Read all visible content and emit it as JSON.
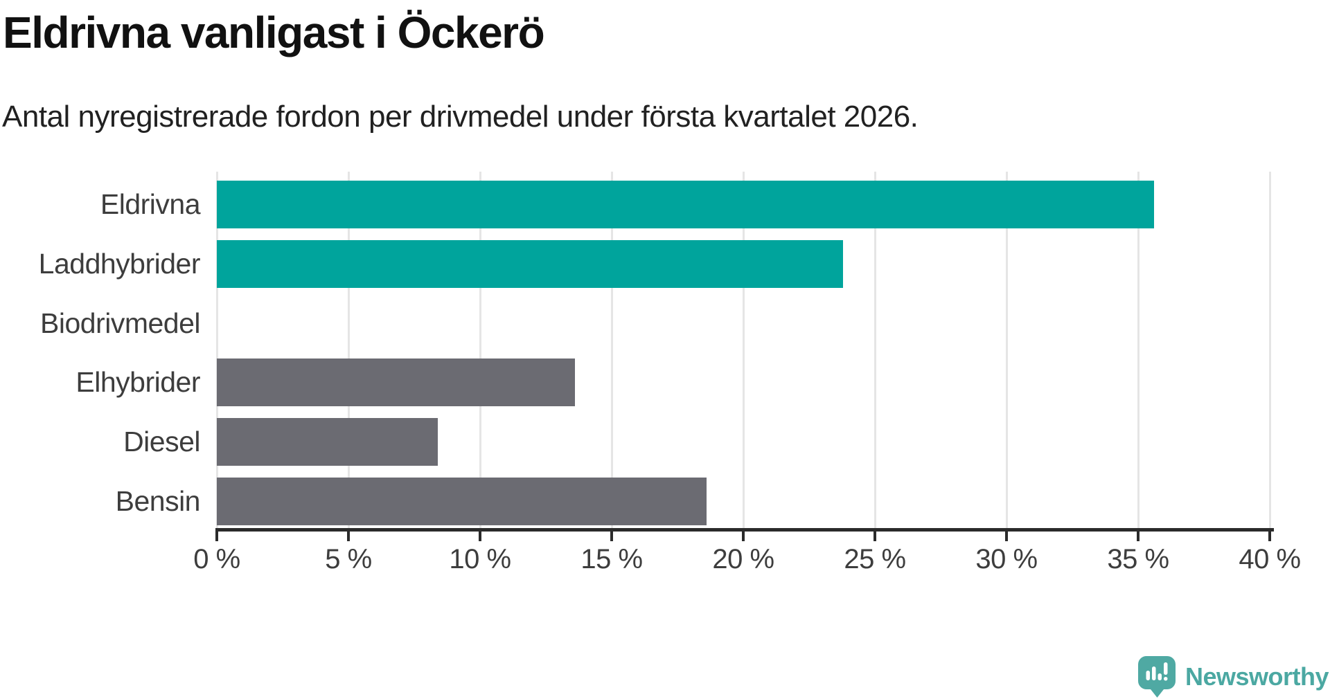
{
  "title": "Eldrivna vanligast i Öckerö",
  "subtitle": "Antal nyregistrerade fordon per drivmedel under första kvartalet 2026.",
  "chart_data": {
    "type": "bar",
    "orientation": "horizontal",
    "title": "Eldrivna vanligast i Öckerö",
    "subtitle": "Antal nyregistrerade fordon per drivmedel under första kvartalet 2026.",
    "categories": [
      "Eldrivna",
      "Laddhybrider",
      "Biodrivmedel",
      "Elhybrider",
      "Diesel",
      "Bensin"
    ],
    "values": [
      35.6,
      23.8,
      0,
      13.6,
      8.4,
      18.6
    ],
    "unit": "%",
    "bar_colors": [
      "#00A49C",
      "#00A49C",
      "#6B6B72",
      "#6B6B72",
      "#6B6B72",
      "#6B6B72"
    ],
    "highlight_color": "#00A49C",
    "default_color": "#6B6B72",
    "x_ticks": [
      0,
      5,
      10,
      15,
      20,
      25,
      30,
      35,
      40
    ],
    "x_tick_format": "{v} %",
    "xlim": [
      0,
      40
    ],
    "xlabel": "",
    "ylabel": "",
    "grid": "vertical-only",
    "legend": "none"
  },
  "logo": {
    "text": "Newsworthy",
    "text_color": "#4BA8A2",
    "icon_color": "#4FA9A3",
    "icon": "newsworthy-speech-bubble-bar-chart-icon"
  }
}
